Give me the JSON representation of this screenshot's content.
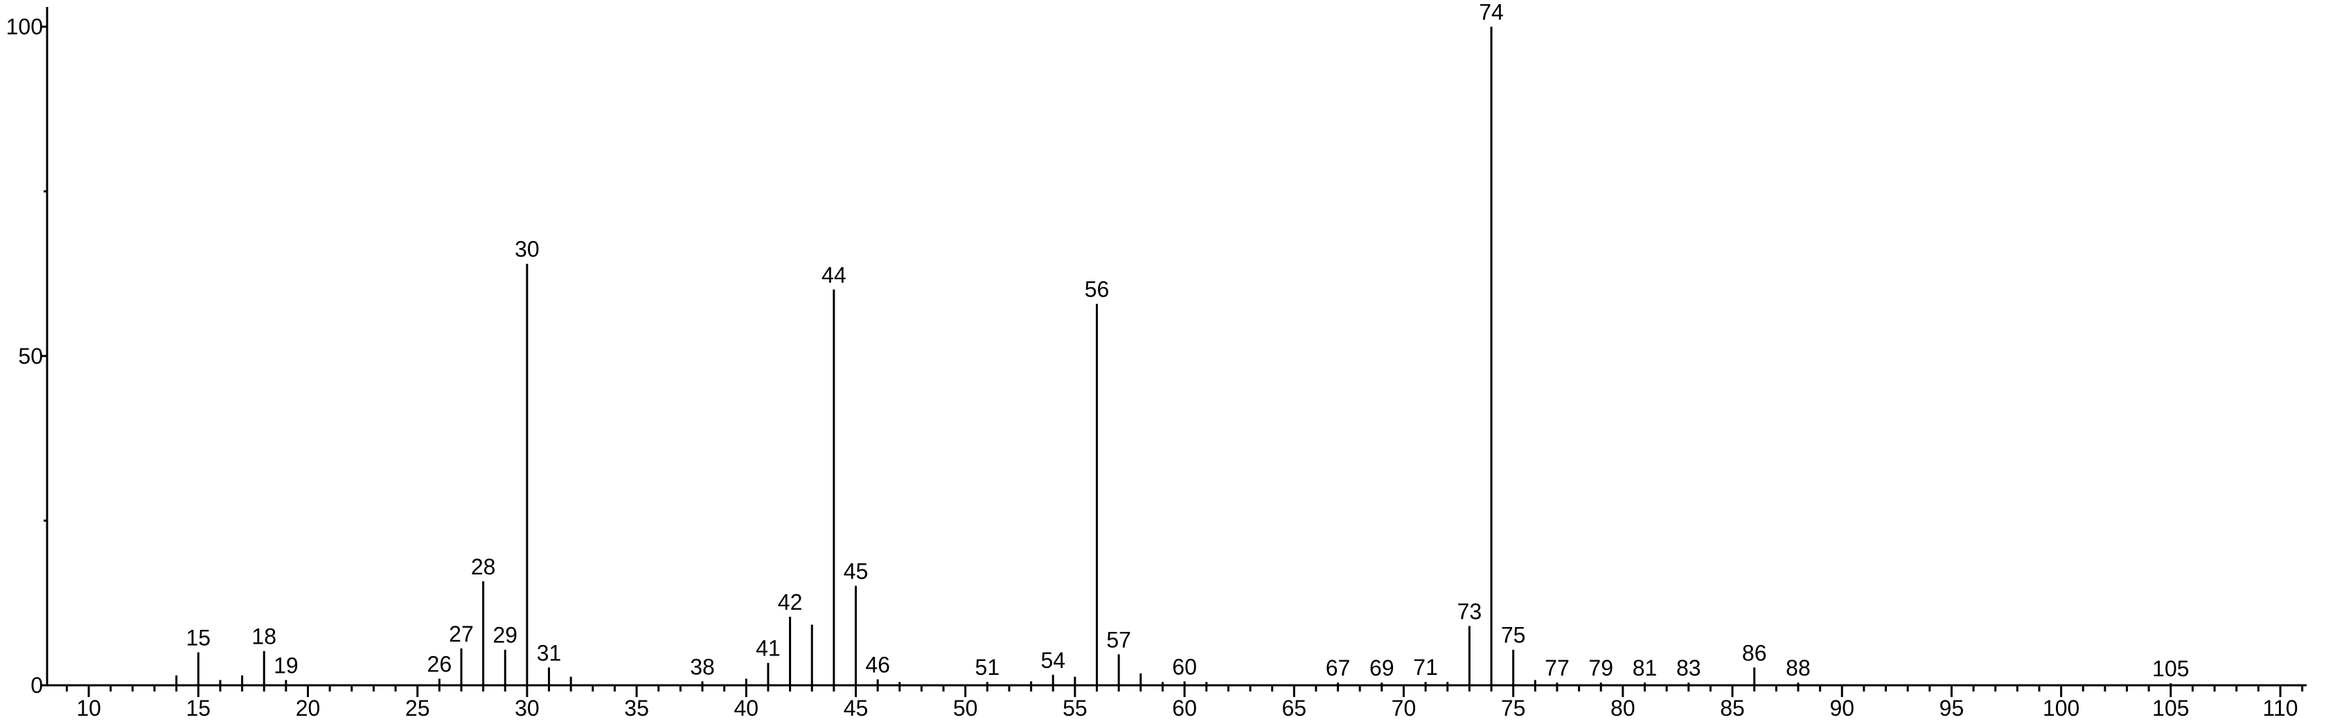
{
  "chart_data": {
    "type": "stem",
    "x": [
      14,
      15,
      16,
      17,
      18,
      19,
      26,
      27,
      28,
      29,
      30,
      31,
      32,
      38,
      40,
      41,
      42,
      43,
      44,
      45,
      46,
      47,
      51,
      53,
      54,
      55,
      56,
      57,
      58,
      59,
      60,
      61,
      67,
      69,
      71,
      72,
      73,
      74,
      75,
      76,
      77,
      79,
      81,
      83,
      86,
      88,
      105
    ],
    "values": [
      1.5,
      5,
      0.8,
      1.5,
      5.2,
      0.8,
      1,
      5.6,
      15.8,
      5.4,
      64,
      2.7,
      1.3,
      0.6,
      1,
      3.4,
      10.4,
      9.2,
      60.1,
      15.1,
      0.9,
      0.5,
      0.5,
      0.6,
      1.6,
      1.3,
      57.9,
      4.7,
      1.8,
      0.5,
      0.6,
      0.5,
      0.4,
      0.4,
      0.5,
      0.5,
      9,
      100,
      5.4,
      0.8,
      0.4,
      0.4,
      0.4,
      0.4,
      2.7,
      0.4,
      0.3
    ],
    "labeled": [
      false,
      true,
      false,
      false,
      true,
      true,
      true,
      true,
      true,
      true,
      true,
      true,
      false,
      true,
      false,
      true,
      true,
      false,
      true,
      true,
      true,
      false,
      true,
      false,
      true,
      false,
      true,
      true,
      false,
      false,
      true,
      false,
      true,
      true,
      true,
      false,
      true,
      true,
      true,
      false,
      true,
      true,
      true,
      true,
      true,
      true,
      true
    ],
    "color": "#000000",
    "xlim": [
      8.1,
      111.2
    ],
    "ylim": [
      0,
      103
    ],
    "xticks": [
      10,
      15,
      20,
      25,
      30,
      35,
      40,
      45,
      50,
      55,
      60,
      65,
      70,
      75,
      80,
      85,
      90,
      95,
      100,
      105,
      110
    ],
    "xminorticks": [
      9,
      11,
      12,
      13,
      14,
      16,
      17,
      18,
      19,
      21,
      22,
      23,
      24,
      26,
      27,
      28,
      29,
      31,
      32,
      33,
      34,
      36,
      37,
      38,
      39,
      41,
      42,
      43,
      44,
      46,
      47,
      48,
      49,
      51,
      52,
      53,
      54,
      56,
      57,
      58,
      59,
      61,
      62,
      63,
      64,
      66,
      67,
      68,
      69,
      71,
      72,
      73,
      74,
      76,
      77,
      78,
      79,
      81,
      82,
      83,
      84,
      86,
      87,
      88,
      89,
      91,
      92,
      93,
      94,
      96,
      97,
      98,
      99,
      101,
      102,
      103,
      104,
      106,
      107,
      108,
      109,
      111
    ],
    "yticks": [
      0,
      50,
      100
    ],
    "yminorticks": [
      25,
      75
    ]
  }
}
